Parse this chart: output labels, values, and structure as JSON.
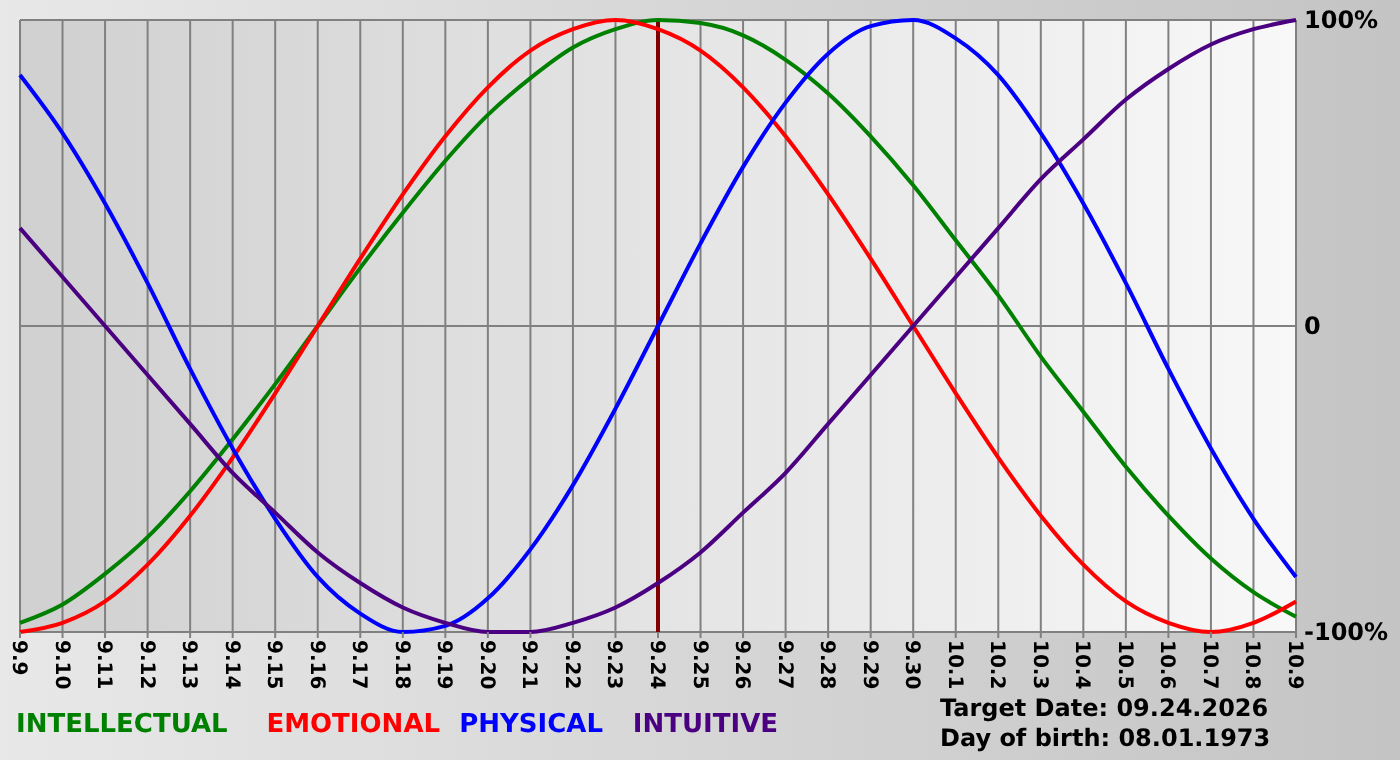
{
  "chart_data": {
    "type": "line",
    "categories": [
      "9.9",
      "9.10",
      "9.11",
      "9.12",
      "9.13",
      "9.14",
      "9.15",
      "9.16",
      "9.17",
      "9.18",
      "9.19",
      "9.20",
      "9.21",
      "9.22",
      "9.23",
      "9.24",
      "9.25",
      "9.26",
      "9.27",
      "9.28",
      "9.29",
      "9.30",
      "10.1",
      "10.2",
      "10.3",
      "10.4",
      "10.5",
      "10.6",
      "10.7",
      "10.8",
      "10.9"
    ],
    "series": [
      {
        "name": "INTELLECTUAL",
        "color": "#008000",
        "values": [
          -97,
          -91,
          -81,
          -69,
          -54,
          -37,
          -19,
          0,
          19,
          37,
          54,
          69,
          81,
          91,
          97,
          100,
          99,
          95,
          87,
          76,
          62,
          46,
          28,
          10,
          -10,
          -28,
          -46,
          -62,
          -76,
          -87,
          -95
        ]
      },
      {
        "name": "EMOTIONAL",
        "color": "#ff0000",
        "values": [
          -100,
          -97,
          -90,
          -78,
          -62,
          -43,
          -22,
          0,
          22,
          43,
          62,
          78,
          90,
          97,
          100,
          97,
          90,
          78,
          62,
          43,
          22,
          0,
          -22,
          -43,
          -62,
          -78,
          -90,
          -97,
          -100,
          -97,
          -90
        ]
      },
      {
        "name": "PHYSICAL",
        "color": "#0000ff",
        "values": [
          82,
          63,
          40,
          14,
          -14,
          -40,
          -63,
          -82,
          -94,
          -100,
          -98,
          -89,
          -73,
          -52,
          -27,
          0,
          27,
          52,
          73,
          89,
          98,
          100,
          94,
          82,
          63,
          40,
          14,
          -14,
          -40,
          -63,
          -82
        ]
      },
      {
        "name": "INTUITIVE",
        "color": "#4b0082",
        "values": [
          32,
          16,
          0,
          -16,
          -32,
          -48,
          -61,
          -74,
          -84,
          -92,
          -97,
          -100,
          -100,
          -97,
          -92,
          -84,
          -74,
          -61,
          -48,
          -32,
          -16,
          0,
          16,
          32,
          48,
          61,
          74,
          84,
          92,
          97,
          100
        ]
      }
    ],
    "ylim": [
      -100,
      100
    ],
    "yticks": [
      {
        "value": 100,
        "label": "100%"
      },
      0,
      {
        "value": -100,
        "label": "-100%"
      }
    ],
    "grid": true,
    "legend": "bottom",
    "marker": "none",
    "line_style": "solid",
    "ref_lines": [
      {
        "axis": "x",
        "value": "9.24",
        "label": null,
        "color": "#800000"
      }
    ],
    "annotations": [
      "Target Date: 09.24.2026",
      "Day of birth: 08.01.1973"
    ]
  }
}
